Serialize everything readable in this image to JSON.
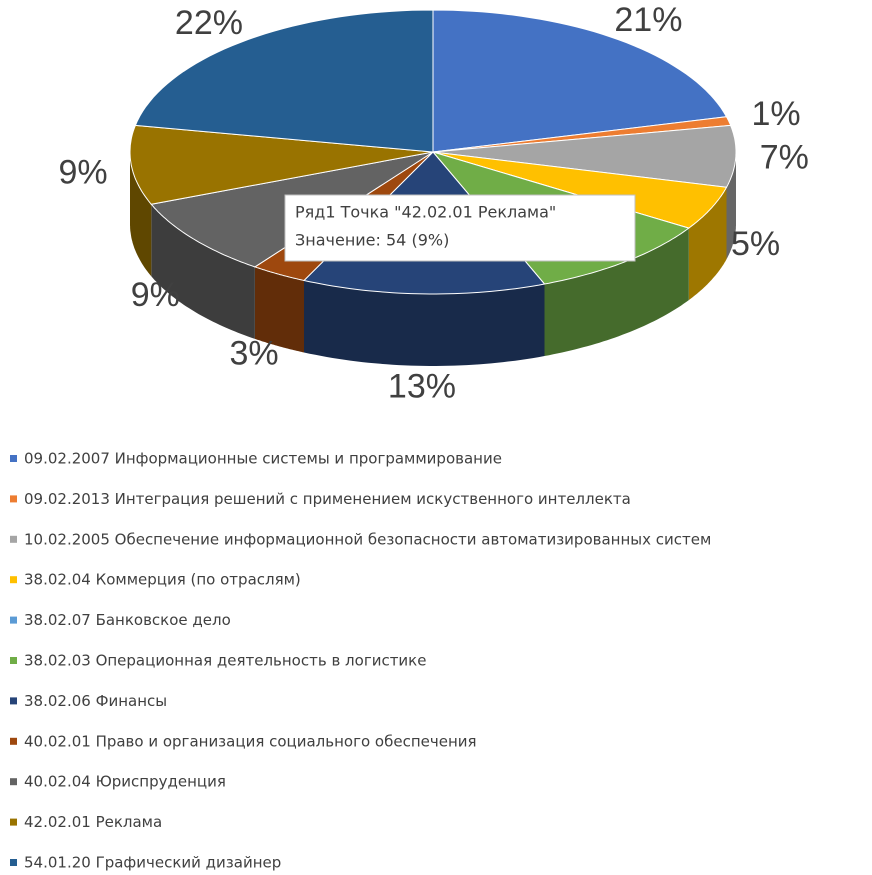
{
  "chart_data": {
    "type": "pie3d",
    "categories": [
      "09.02.2007 Информационные системы и программирование",
      "09.02.2013 Интеграция решений с применением искуственного интеллекта",
      "10.02.2005 Обеспечение информационной безопасности автоматизированных систем",
      "38.02.04  Коммерция (по отраслям)",
      "38.02.07  Банковское дело",
      "38.02.03  Операционная деятельность в логистике",
      "38.02.06  Финансы",
      "40.02.01  Право и организация социального обеспечения",
      "40.02.04  Юриспруденция",
      "42.02.01  Реклама",
      "54.01.20  Графический дизайнер"
    ],
    "values": [
      21,
      1,
      7,
      5,
      0,
      10,
      13,
      3,
      9,
      9,
      22
    ],
    "value_labels": [
      "21%",
      "1%",
      "7%",
      "5%",
      null,
      null,
      "13%",
      "3%",
      "9%",
      "9%",
      "22%"
    ],
    "colors": [
      "#4472c4",
      "#ed7d31",
      "#a5a5a5",
      "#ffc000",
      "#5b9bd5",
      "#70ad47",
      "#264478",
      "#9e480e",
      "#636363",
      "#997300",
      "#255e91"
    ],
    "tooltip": {
      "title": "Ряд1 Точка \"42.02.01  Реклама\"",
      "text": "Значение: 54 (9%)"
    },
    "legend": "bottom"
  }
}
